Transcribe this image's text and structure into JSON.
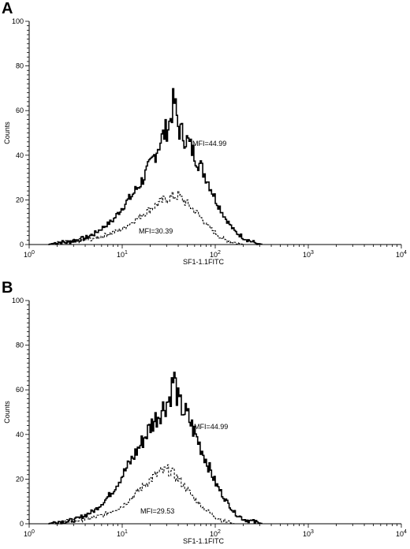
{
  "panels": [
    {
      "letter": "A"
    },
    {
      "letter": "B"
    }
  ],
  "chart_data": [
    {
      "type": "line",
      "panel": "A",
      "xlabel": "SF1-1.1FITC",
      "ylabel": "Counts",
      "xscale": "log",
      "xlim": [
        1,
        10000
      ],
      "ylim": [
        0,
        100
      ],
      "x_ticks": [
        {
          "base": "10",
          "exp": "0"
        },
        {
          "base": "10",
          "exp": "1"
        },
        {
          "base": "10",
          "exp": "2"
        },
        {
          "base": "10",
          "exp": "3"
        },
        {
          "base": "10",
          "exp": "4"
        }
      ],
      "y_ticks": [
        "0",
        "20",
        "40",
        "60",
        "80",
        "100"
      ],
      "grid": false,
      "series": [
        {
          "style": "solid",
          "x": [
            1.6,
            2.0,
            2.5,
            3.2,
            4.0,
            5.0,
            6.3,
            7.9,
            10.0,
            12.6,
            15.8,
            20.0,
            25.1,
            31.6,
            35.5,
            39.8,
            50.1,
            63.1,
            79.4,
            100.0,
            125.9,
            158.5,
            199.5,
            251.2,
            316.2
          ],
          "y": [
            0,
            1,
            1,
            2,
            3,
            5,
            8,
            11,
            17,
            22,
            28,
            36,
            46,
            54,
            65,
            52,
            46,
            38,
            30,
            20,
            12,
            6,
            3,
            1,
            0
          ]
        },
        {
          "style": "dashed",
          "x": [
            1.6,
            2.5,
            4.0,
            6.3,
            10.0,
            12.6,
            15.8,
            20.0,
            25.1,
            31.6,
            39.8,
            50.1,
            63.1,
            79.4,
            100.0,
            125.9,
            158.5,
            199.5
          ],
          "y": [
            0,
            1,
            2,
            4,
            7,
            10,
            13,
            16,
            19,
            21,
            22,
            18,
            14,
            9,
            5,
            2,
            1,
            0
          ]
        }
      ],
      "annotations": [
        "MFI=44.99",
        "MFI=30.39"
      ]
    },
    {
      "type": "line",
      "panel": "B",
      "xlabel": "SF1-1.1FITC",
      "ylabel": "Counts",
      "xscale": "log",
      "xlim": [
        1,
        10000
      ],
      "ylim": [
        0,
        100
      ],
      "x_ticks": [
        {
          "base": "10",
          "exp": "0"
        },
        {
          "base": "10",
          "exp": "1"
        },
        {
          "base": "10",
          "exp": "2"
        },
        {
          "base": "10",
          "exp": "3"
        },
        {
          "base": "10",
          "exp": "4"
        }
      ],
      "y_ticks": [
        "0",
        "20",
        "40",
        "60",
        "80",
        "100"
      ],
      "grid": false,
      "series": [
        {
          "style": "solid",
          "x": [
            1.6,
            2.0,
            2.5,
            3.2,
            4.0,
            5.0,
            6.3,
            7.9,
            10.0,
            12.6,
            15.8,
            20.0,
            25.1,
            31.6,
            35.5,
            39.8,
            50.1,
            63.1,
            79.4,
            100.0,
            125.9,
            158.5,
            199.5,
            251.2,
            316.2
          ],
          "y": [
            0,
            1,
            1,
            2,
            4,
            6,
            10,
            15,
            22,
            29,
            36,
            44,
            50,
            56,
            66,
            54,
            48,
            38,
            28,
            18,
            11,
            5,
            2,
            1,
            0
          ]
        },
        {
          "style": "dashed",
          "x": [
            1.6,
            2.5,
            4.0,
            6.3,
            10.0,
            12.6,
            15.8,
            20.0,
            25.1,
            31.6,
            39.8,
            50.1,
            63.1,
            79.4,
            100.0,
            125.9,
            158.5,
            199.5
          ],
          "y": [
            0,
            1,
            2,
            4,
            8,
            12,
            16,
            20,
            23,
            24,
            20,
            15,
            10,
            6,
            3,
            1,
            0,
            0
          ]
        }
      ],
      "annotations": [
        "MFI=44.99",
        "MFI=29.53"
      ]
    }
  ]
}
